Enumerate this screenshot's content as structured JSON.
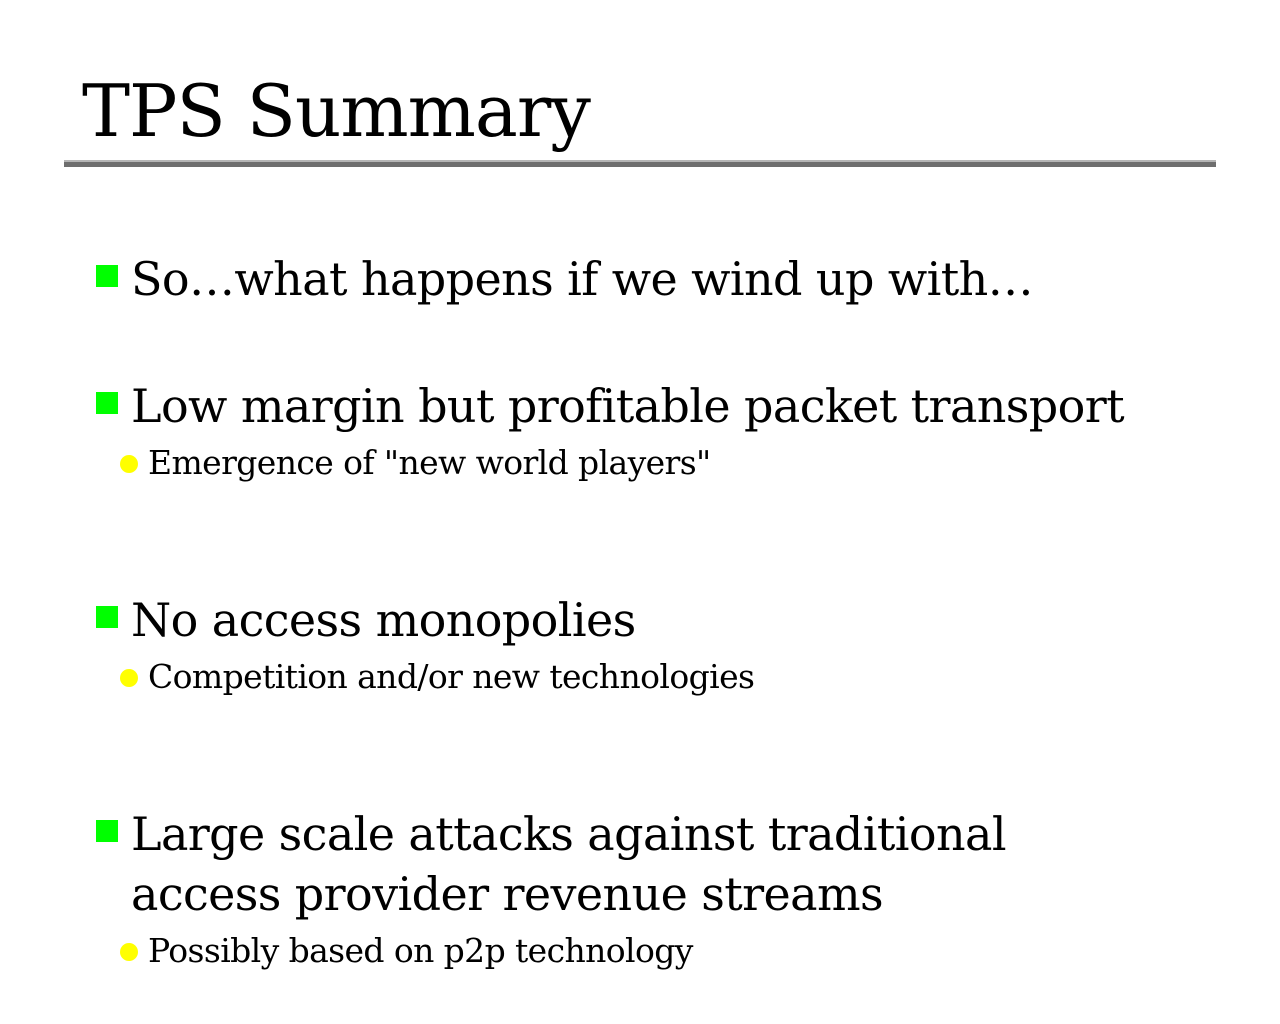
{
  "slide": {
    "title": "TPS Summary"
  },
  "colors": {
    "bullet_marker": "#00ff00",
    "sub_bullet_marker": "#ffff00",
    "rule_dark": "#6e6e6e",
    "rule_light": "#b5b5b5"
  },
  "icons": {
    "bullet": "green-square-icon",
    "sub_bullet": "yellow-dot-icon"
  },
  "bullets": [
    {
      "text": "So…what happens if we wind up with…"
    },
    {
      "text": "Low margin but profitable packet transport",
      "sub": "Emergence of \"new world players\""
    },
    {
      "text": "No access monopolies",
      "sub": "Competition and/or new technologies"
    },
    {
      "text": "Large scale attacks against traditional access provider revenue streams",
      "sub": "Possibly based on p2p technology"
    }
  ]
}
